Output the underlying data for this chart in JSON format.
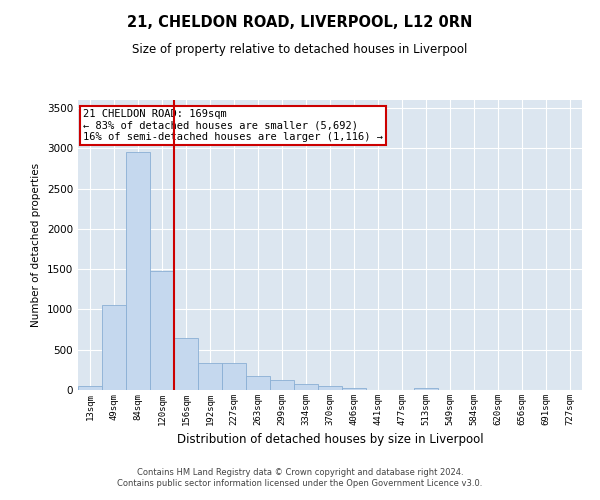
{
  "title": "21, CHELDON ROAD, LIVERPOOL, L12 0RN",
  "subtitle": "Size of property relative to detached houses in Liverpool",
  "xlabel": "Distribution of detached houses by size in Liverpool",
  "ylabel": "Number of detached properties",
  "bar_categories": [
    "13sqm",
    "49sqm",
    "84sqm",
    "120sqm",
    "156sqm",
    "192sqm",
    "227sqm",
    "263sqm",
    "299sqm",
    "334sqm",
    "370sqm",
    "406sqm",
    "441sqm",
    "477sqm",
    "513sqm",
    "549sqm",
    "584sqm",
    "620sqm",
    "656sqm",
    "691sqm",
    "727sqm"
  ],
  "bar_values": [
    50,
    1060,
    2950,
    1480,
    650,
    330,
    330,
    170,
    120,
    70,
    50,
    30,
    0,
    0,
    30,
    0,
    0,
    0,
    0,
    0,
    0
  ],
  "bar_color": "#c5d8ee",
  "bar_edge_color": "#8aafd4",
  "vline_color": "#cc0000",
  "annotation_text": "21 CHELDON ROAD: 169sqm\n← 83% of detached houses are smaller (5,692)\n16% of semi-detached houses are larger (1,116) →",
  "annotation_box_color": "#cc0000",
  "ylim": [
    0,
    3600
  ],
  "yticks": [
    0,
    500,
    1000,
    1500,
    2000,
    2500,
    3000,
    3500
  ],
  "grid_color": "#ffffff",
  "plot_bg_color": "#dce6f0",
  "footer_line1": "Contains HM Land Registry data © Crown copyright and database right 2024.",
  "footer_line2": "Contains public sector information licensed under the Open Government Licence v3.0."
}
